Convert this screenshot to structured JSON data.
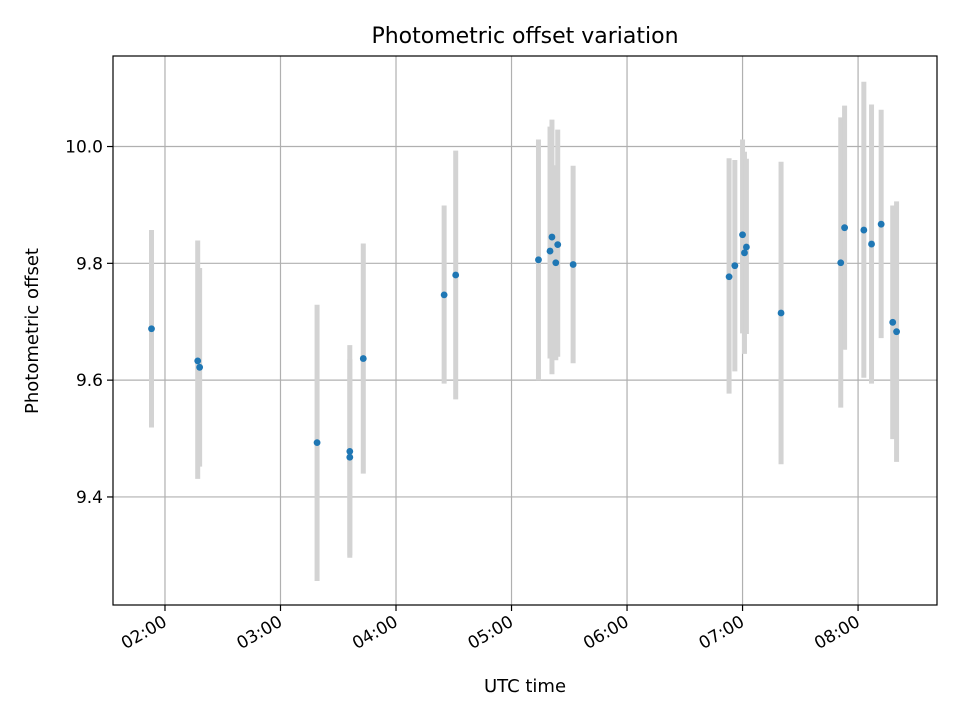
{
  "chart_data": {
    "type": "scatter",
    "title": "Photometric offset variation",
    "xlabel": "UTC time",
    "ylabel": "Photometric offset",
    "x_type": "time",
    "xlim": [
      "01:33",
      "08:41"
    ],
    "ylim": [
      9.215,
      10.155
    ],
    "x_ticks": [
      "02:00",
      "03:00",
      "04:00",
      "05:00",
      "06:00",
      "07:00",
      "08:00"
    ],
    "y_ticks": [
      9.4,
      9.6,
      9.8,
      10.0
    ],
    "y_tick_labels": [
      "9.4",
      "9.6",
      "9.8",
      "10.0"
    ],
    "grid": true,
    "marker_color": "#1f77b4",
    "errorbar_color": "#d3d3d3",
    "series": [
      {
        "points": [
          {
            "x": "01:53",
            "y": 9.688,
            "ylo": 9.519,
            "yhi": 9.857
          },
          {
            "x": "02:17",
            "y": 9.633,
            "ylo": 9.431,
            "yhi": 9.839
          },
          {
            "x": "02:18",
            "y": 9.622,
            "ylo": 9.452,
            "yhi": 9.792
          },
          {
            "x": "03:19",
            "y": 9.493,
            "ylo": 9.256,
            "yhi": 9.729
          },
          {
            "x": "03:36",
            "y": 9.478,
            "ylo": 9.296,
            "yhi": 9.66
          },
          {
            "x": "03:36",
            "y": 9.468,
            "ylo": 9.3,
            "yhi": 9.636
          },
          {
            "x": "03:43",
            "y": 9.637,
            "ylo": 9.44,
            "yhi": 9.834
          },
          {
            "x": "04:25",
            "y": 9.746,
            "ylo": 9.594,
            "yhi": 9.899
          },
          {
            "x": "04:31",
            "y": 9.78,
            "ylo": 9.567,
            "yhi": 9.993
          },
          {
            "x": "05:14",
            "y": 9.806,
            "ylo": 9.6,
            "yhi": 10.012
          },
          {
            "x": "05:20",
            "y": 9.821,
            "ylo": 9.637,
            "yhi": 10.034
          },
          {
            "x": "05:21",
            "y": 9.845,
            "ylo": 9.61,
            "yhi": 10.046
          },
          {
            "x": "05:23",
            "y": 9.801,
            "ylo": 9.634,
            "yhi": 9.968
          },
          {
            "x": "05:24",
            "y": 9.832,
            "ylo": 9.64,
            "yhi": 10.029
          },
          {
            "x": "05:32",
            "y": 9.798,
            "ylo": 9.629,
            "yhi": 9.967
          },
          {
            "x": "06:53",
            "y": 9.777,
            "ylo": 9.577,
            "yhi": 9.98
          },
          {
            "x": "06:56",
            "y": 9.796,
            "ylo": 9.615,
            "yhi": 9.977
          },
          {
            "x": "07:00",
            "y": 9.849,
            "ylo": 9.68,
            "yhi": 10.012
          },
          {
            "x": "07:01",
            "y": 9.818,
            "ylo": 9.645,
            "yhi": 9.991
          },
          {
            "x": "07:02",
            "y": 9.828,
            "ylo": 9.679,
            "yhi": 9.979
          },
          {
            "x": "07:20",
            "y": 9.715,
            "ylo": 9.456,
            "yhi": 9.974
          },
          {
            "x": "07:51",
            "y": 9.801,
            "ylo": 9.553,
            "yhi": 10.05
          },
          {
            "x": "07:53",
            "y": 9.861,
            "ylo": 9.652,
            "yhi": 10.07
          },
          {
            "x": "08:03",
            "y": 9.857,
            "ylo": 9.604,
            "yhi": 10.111
          },
          {
            "x": "08:07",
            "y": 9.833,
            "ylo": 9.594,
            "yhi": 10.072
          },
          {
            "x": "08:12",
            "y": 9.867,
            "ylo": 9.672,
            "yhi": 10.063
          },
          {
            "x": "08:18",
            "y": 9.699,
            "ylo": 9.499,
            "yhi": 9.899
          },
          {
            "x": "08:20",
            "y": 9.683,
            "ylo": 9.46,
            "yhi": 9.906
          }
        ]
      }
    ]
  }
}
